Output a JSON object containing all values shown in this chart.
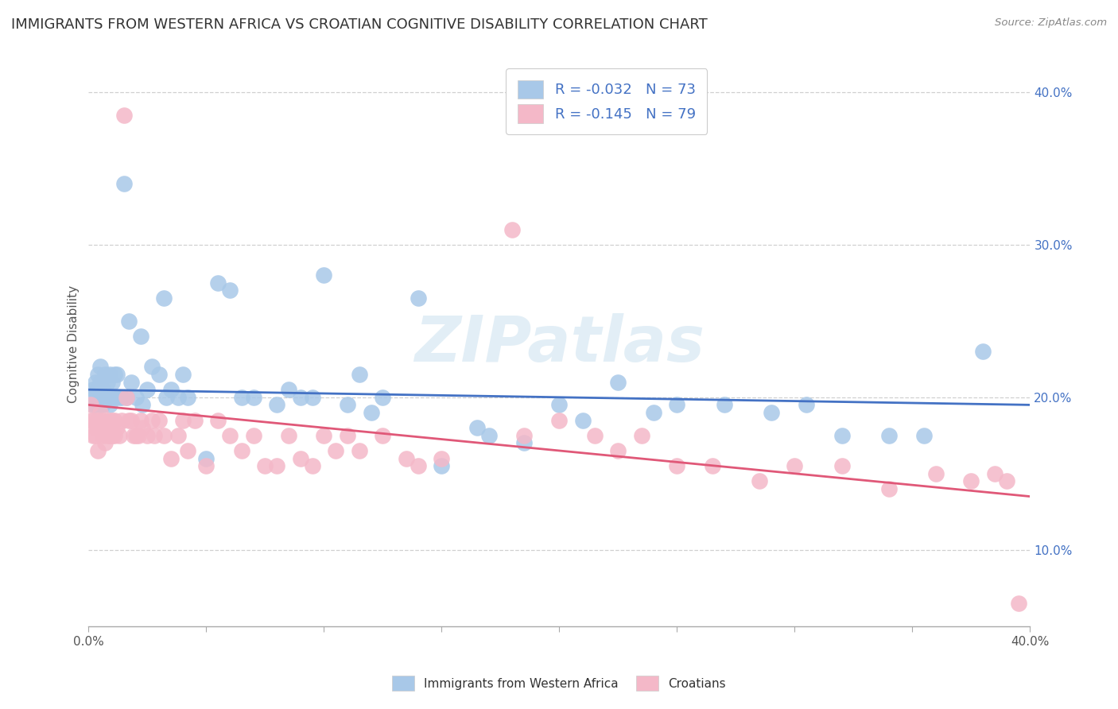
{
  "title": "IMMIGRANTS FROM WESTERN AFRICA VS CROATIAN COGNITIVE DISABILITY CORRELATION CHART",
  "source": "Source: ZipAtlas.com",
  "ylabel": "Cognitive Disability",
  "xlim": [
    0.0,
    0.4
  ],
  "ylim": [
    0.05,
    0.42
  ],
  "y_ticks_right": [
    0.1,
    0.2,
    0.3,
    0.4
  ],
  "y_tick_labels_right": [
    "10.0%",
    "20.0%",
    "30.0%",
    "40.0%"
  ],
  "blue_color": "#a8c8e8",
  "blue_line_color": "#4472c4",
  "pink_color": "#f4b8c8",
  "pink_line_color": "#e05878",
  "R_blue": -0.032,
  "N_blue": 73,
  "R_pink": -0.145,
  "N_pink": 79,
  "legend_label_blue": "Immigrants from Western Africa",
  "legend_label_pink": "Croatians",
  "watermark": "ZIPatlas",
  "title_fontsize": 13,
  "label_fontsize": 11,
  "tick_fontsize": 11,
  "legend_fontsize": 13,
  "blue_points_x": [
    0.001,
    0.002,
    0.002,
    0.003,
    0.003,
    0.004,
    0.004,
    0.004,
    0.005,
    0.005,
    0.005,
    0.006,
    0.006,
    0.007,
    0.007,
    0.008,
    0.008,
    0.009,
    0.009,
    0.01,
    0.01,
    0.011,
    0.011,
    0.012,
    0.013,
    0.014,
    0.015,
    0.016,
    0.017,
    0.018,
    0.02,
    0.022,
    0.023,
    0.025,
    0.027,
    0.03,
    0.032,
    0.033,
    0.035,
    0.038,
    0.04,
    0.042,
    0.05,
    0.055,
    0.06,
    0.065,
    0.07,
    0.08,
    0.085,
    0.09,
    0.095,
    0.1,
    0.11,
    0.115,
    0.12,
    0.125,
    0.14,
    0.15,
    0.165,
    0.17,
    0.185,
    0.2,
    0.21,
    0.225,
    0.24,
    0.25,
    0.27,
    0.29,
    0.305,
    0.32,
    0.34,
    0.355,
    0.38
  ],
  "blue_points_y": [
    0.2,
    0.205,
    0.195,
    0.21,
    0.195,
    0.2,
    0.215,
    0.205,
    0.195,
    0.21,
    0.22,
    0.205,
    0.195,
    0.2,
    0.215,
    0.21,
    0.2,
    0.215,
    0.195,
    0.2,
    0.21,
    0.215,
    0.2,
    0.215,
    0.2,
    0.2,
    0.34,
    0.2,
    0.25,
    0.21,
    0.2,
    0.24,
    0.195,
    0.205,
    0.22,
    0.215,
    0.265,
    0.2,
    0.205,
    0.2,
    0.215,
    0.2,
    0.16,
    0.275,
    0.27,
    0.2,
    0.2,
    0.195,
    0.205,
    0.2,
    0.2,
    0.28,
    0.195,
    0.215,
    0.19,
    0.2,
    0.265,
    0.155,
    0.18,
    0.175,
    0.17,
    0.195,
    0.185,
    0.21,
    0.19,
    0.195,
    0.195,
    0.19,
    0.195,
    0.175,
    0.175,
    0.175,
    0.23
  ],
  "pink_points_x": [
    0.001,
    0.001,
    0.002,
    0.002,
    0.003,
    0.003,
    0.004,
    0.004,
    0.005,
    0.005,
    0.006,
    0.006,
    0.007,
    0.007,
    0.008,
    0.008,
    0.009,
    0.009,
    0.01,
    0.01,
    0.011,
    0.011,
    0.012,
    0.013,
    0.014,
    0.015,
    0.016,
    0.017,
    0.018,
    0.019,
    0.02,
    0.021,
    0.022,
    0.023,
    0.025,
    0.027,
    0.028,
    0.03,
    0.032,
    0.035,
    0.038,
    0.04,
    0.042,
    0.045,
    0.05,
    0.055,
    0.06,
    0.065,
    0.07,
    0.075,
    0.08,
    0.085,
    0.09,
    0.095,
    0.1,
    0.105,
    0.11,
    0.115,
    0.125,
    0.135,
    0.14,
    0.15,
    0.18,
    0.185,
    0.2,
    0.215,
    0.225,
    0.235,
    0.25,
    0.265,
    0.285,
    0.3,
    0.32,
    0.34,
    0.36,
    0.375,
    0.385,
    0.39,
    0.395
  ],
  "pink_points_y": [
    0.185,
    0.195,
    0.175,
    0.185,
    0.18,
    0.175,
    0.185,
    0.165,
    0.18,
    0.19,
    0.175,
    0.185,
    0.18,
    0.17,
    0.175,
    0.18,
    0.175,
    0.185,
    0.175,
    0.185,
    0.175,
    0.185,
    0.18,
    0.175,
    0.185,
    0.385,
    0.2,
    0.185,
    0.185,
    0.175,
    0.175,
    0.175,
    0.185,
    0.18,
    0.175,
    0.185,
    0.175,
    0.185,
    0.175,
    0.16,
    0.175,
    0.185,
    0.165,
    0.185,
    0.155,
    0.185,
    0.175,
    0.165,
    0.175,
    0.155,
    0.155,
    0.175,
    0.16,
    0.155,
    0.175,
    0.165,
    0.175,
    0.165,
    0.175,
    0.16,
    0.155,
    0.16,
    0.31,
    0.175,
    0.185,
    0.175,
    0.165,
    0.175,
    0.155,
    0.155,
    0.145,
    0.155,
    0.155,
    0.14,
    0.15,
    0.145,
    0.15,
    0.145,
    0.065
  ],
  "bg_color": "#ffffff",
  "grid_color": "#d0d0d0"
}
